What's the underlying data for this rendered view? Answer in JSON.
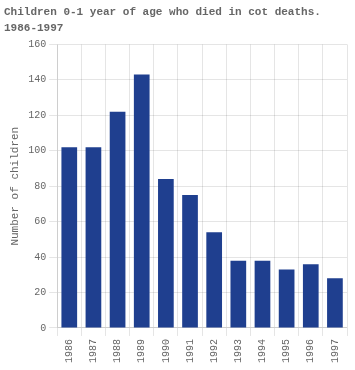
{
  "chart_data": {
    "type": "bar",
    "title": "Children 0-1 year of age who died in cot deaths.",
    "subtitle": "1986-1997",
    "ylabel": "Number of children",
    "categories": [
      "1986",
      "1987",
      "1988",
      "1989",
      "1990",
      "1991",
      "1992",
      "1993",
      "1994",
      "1995",
      "1996",
      "1997"
    ],
    "values": [
      102,
      102,
      122,
      143,
      84,
      75,
      54,
      38,
      38,
      33,
      36,
      28
    ],
    "color": "#1F3F8F",
    "ylim": [
      0,
      160
    ],
    "yticks": [
      0,
      20,
      40,
      60,
      80,
      100,
      120,
      140,
      160
    ],
    "grid": true
  }
}
